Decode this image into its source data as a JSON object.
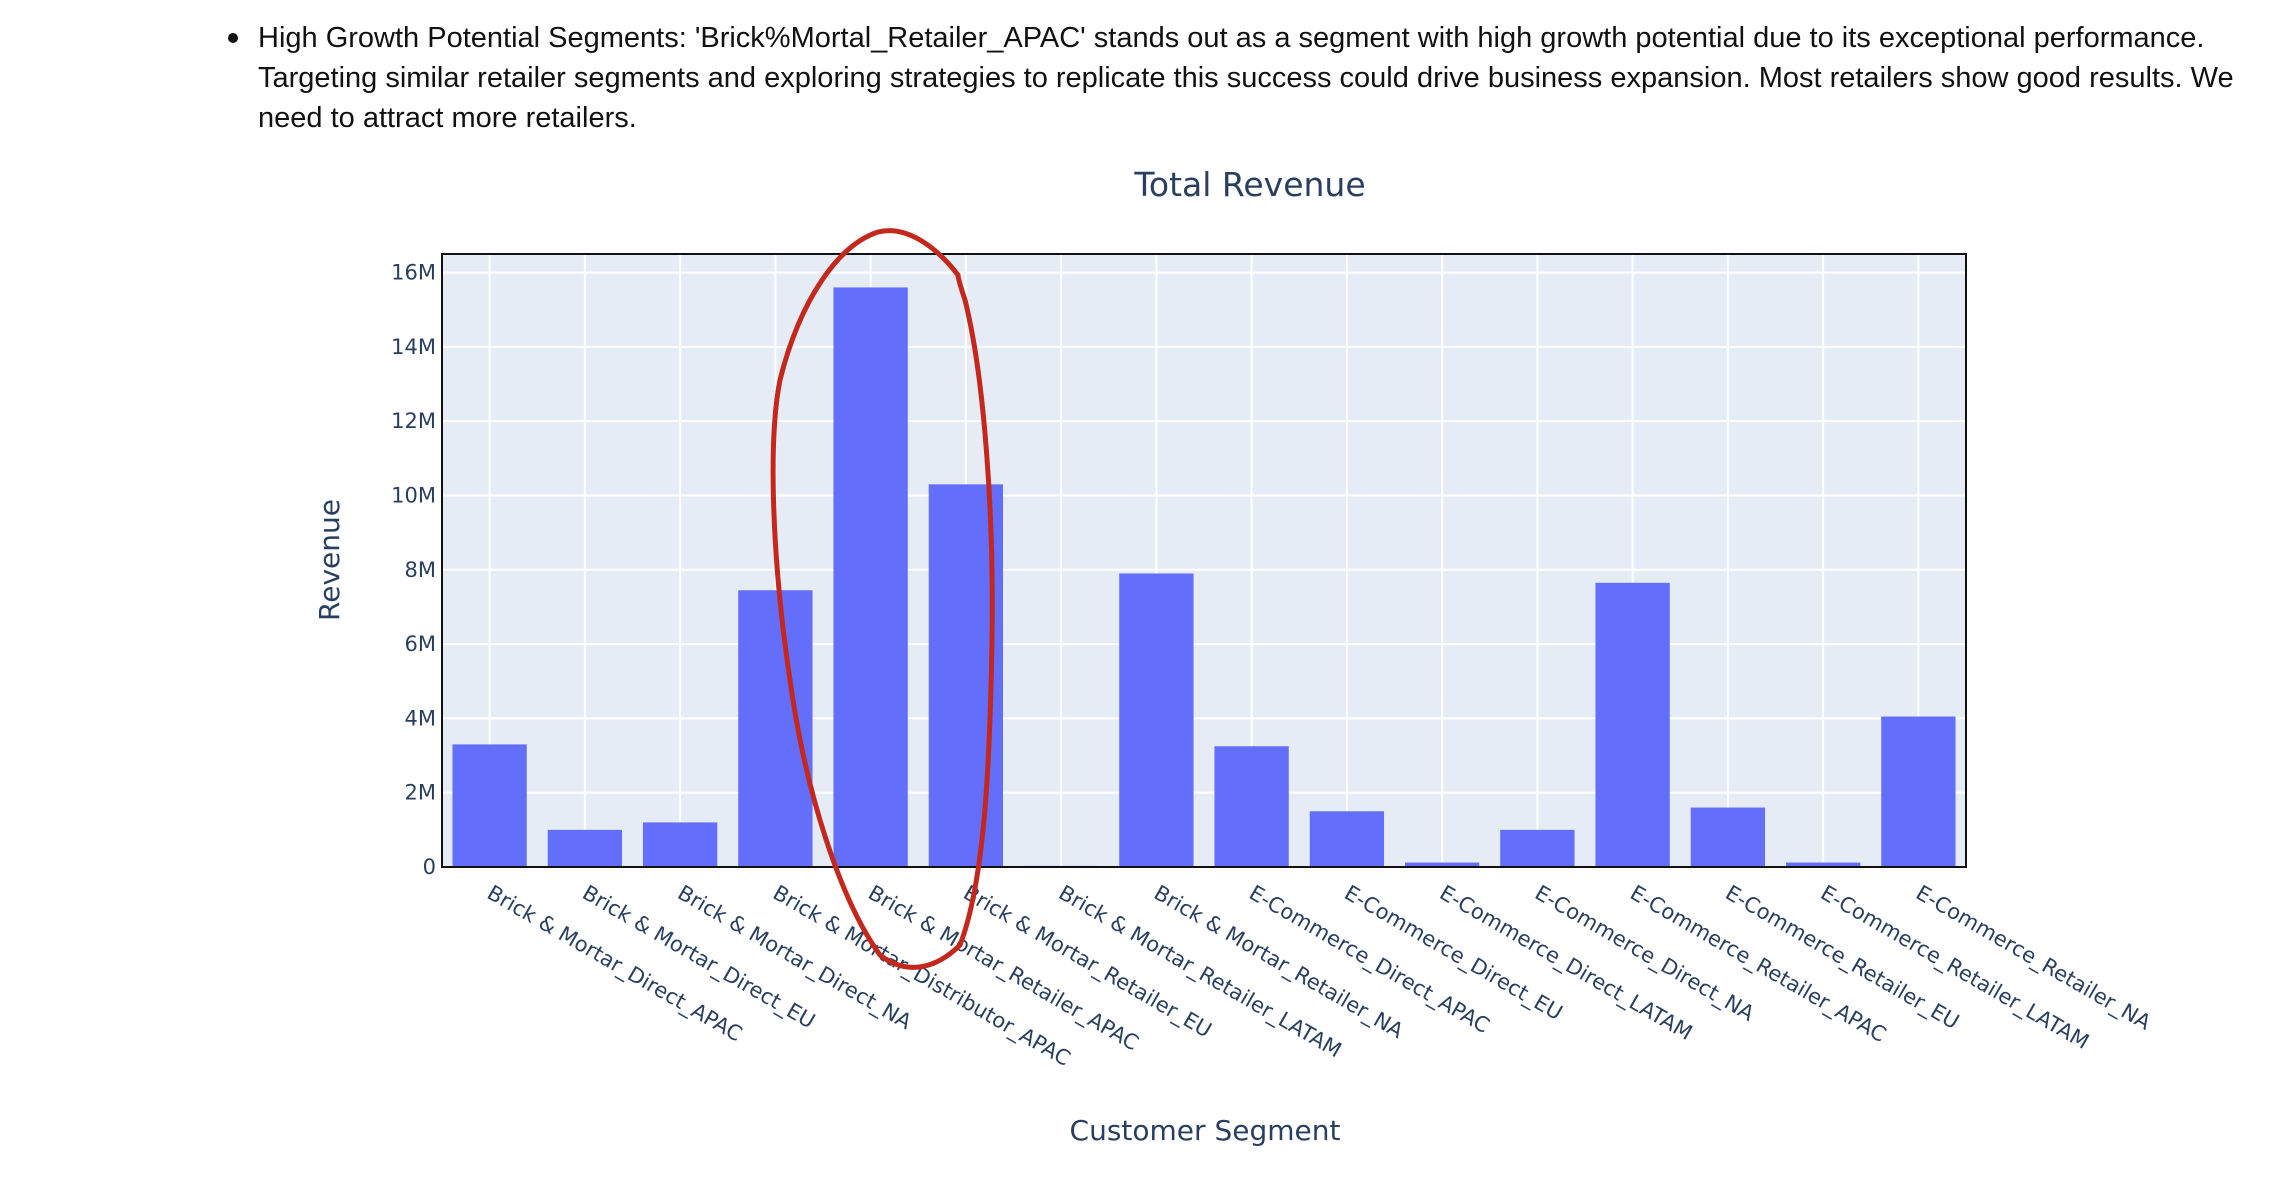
{
  "bullet": {
    "text": "High Growth Potential Segments: 'Brick%Mortal_Retailer_APAC' stands out as a segment with high growth potential due to its exceptional performance. Targeting similar retailer segments and exploring strategies to replicate this success could drive business expansion. Most retailers show good results. We need to attract more retailers."
  },
  "colors": {
    "bar": "#636efa",
    "plot_bg": "#e5ecf6",
    "grid": "#ffffff",
    "axis_text": "#2a3f5f",
    "annotation": "#c4281c"
  },
  "chart_data": {
    "type": "bar",
    "title": "Total Revenue",
    "xlabel": "Customer Segment",
    "ylabel": "Revenue",
    "ylim": [
      0,
      16500000
    ],
    "yticks": [
      0,
      2000000,
      4000000,
      6000000,
      8000000,
      10000000,
      12000000,
      14000000,
      16000000
    ],
    "ytick_labels": [
      "0",
      "2M",
      "4M",
      "6M",
      "8M",
      "10M",
      "12M",
      "14M",
      "16M"
    ],
    "grid": true,
    "categories": [
      "Brick & Mortar_Direct_APAC",
      "Brick & Mortar_Direct_EU",
      "Brick & Mortar_Direct_NA",
      "Brick & Mortar_Distributor_APAC",
      "Brick & Mortar_Retailer_APAC",
      "Brick & Mortar_Retailer_EU",
      "Brick & Mortar_Retailer_LATAM",
      "Brick & Mortar_Retailer_NA",
      "E-Commerce_Direct_APAC",
      "E-Commerce_Direct_EU",
      "E-Commerce_Direct_LATAM",
      "E-Commerce_Direct_NA",
      "E-Commerce_Retailer_APAC",
      "E-Commerce_Retailer_EU",
      "E-Commerce_Retailer_LATAM",
      "E-Commerce_Retailer_NA"
    ],
    "values": [
      3300000,
      1000000,
      1200000,
      7450000,
      15600000,
      10300000,
      30000,
      7900000,
      3250000,
      1500000,
      120000,
      1000000,
      7650000,
      1600000,
      120000,
      4050000
    ],
    "annotation": "hand-drawn red circle around Brick & Mortar_Retailer_APAC and Brick & Mortar_Retailer_EU"
  }
}
